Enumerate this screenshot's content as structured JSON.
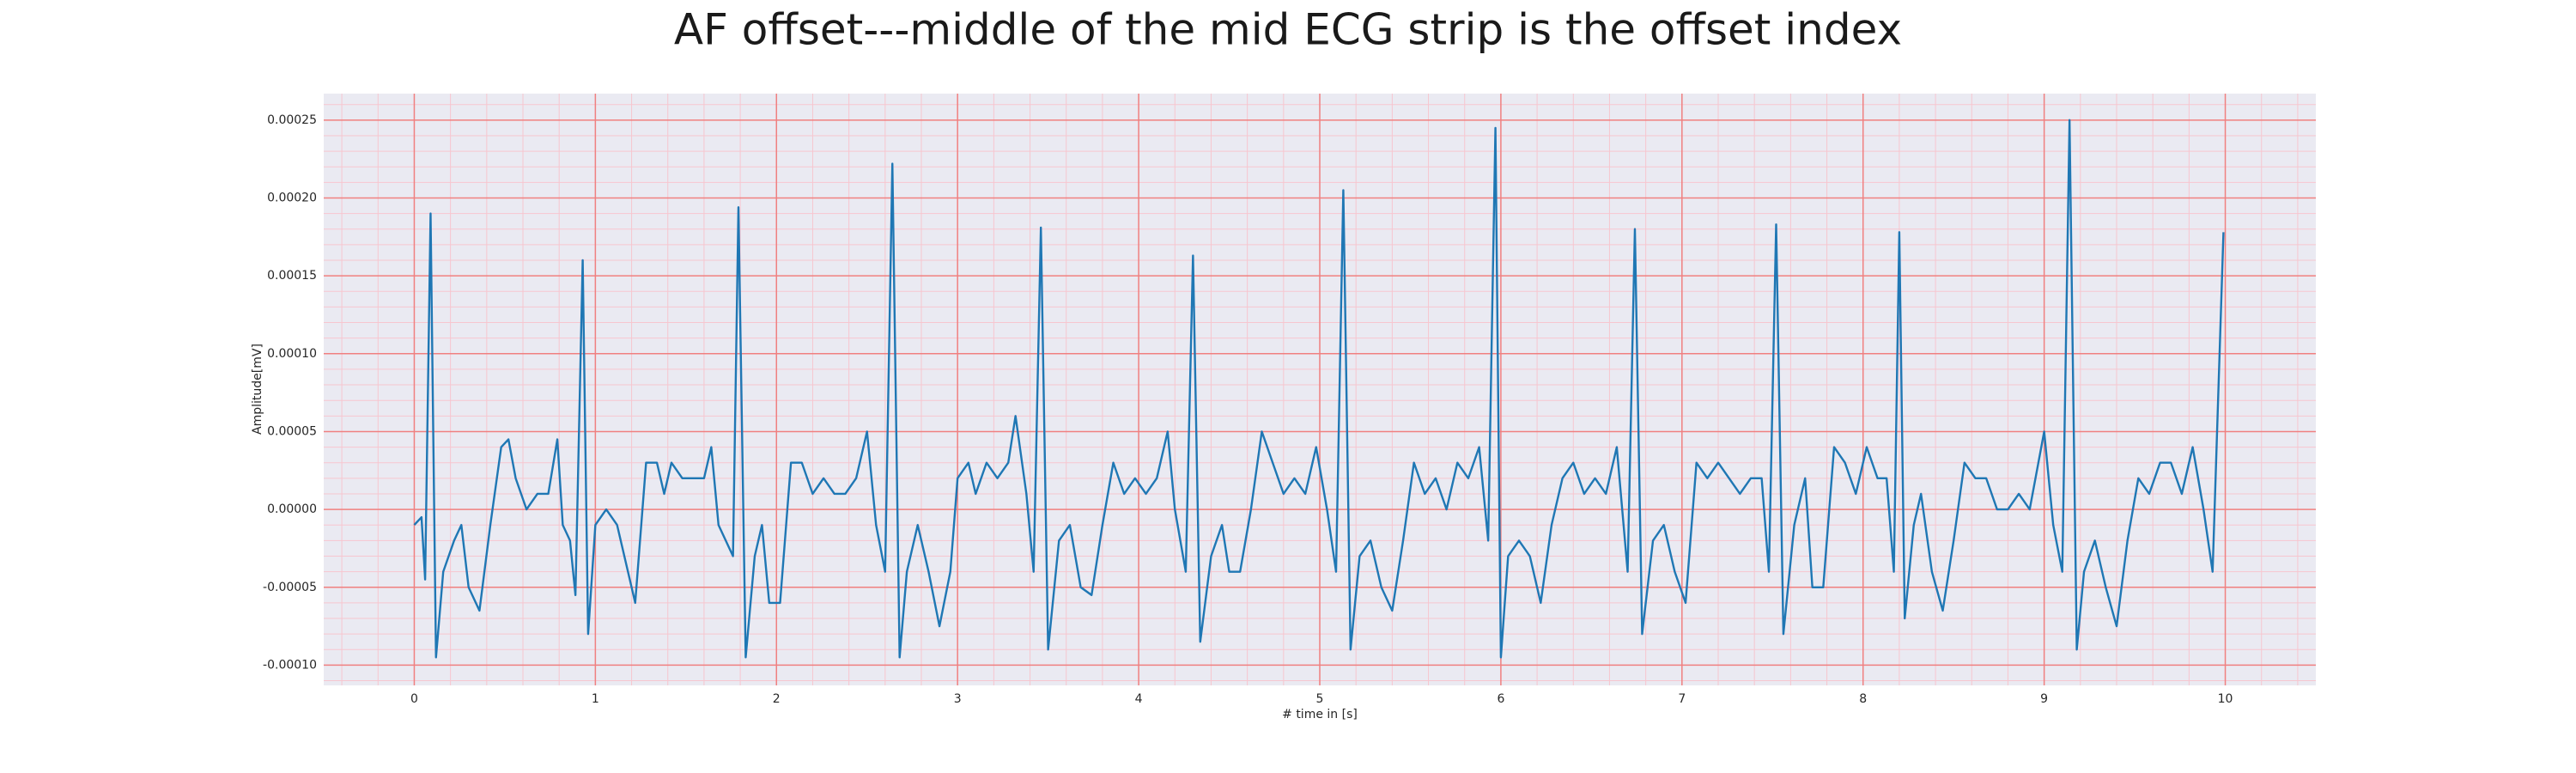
{
  "chart_data": {
    "type": "line",
    "title": "AF offset---middle of the mid ECG strip is the offset index",
    "x_label": "# time in [s]",
    "y_label": "Amplitude[mV]",
    "color": "#1f77b4",
    "background": "#eaeaf2",
    "grid": true,
    "grid_color": "#f08080",
    "minor_grid": true,
    "minor_grid_color": "#f7c6cf",
    "xlim": [
      -0.5,
      10.5
    ],
    "ylim": [
      -0.000113,
      0.000267
    ],
    "xticks": [
      0,
      1,
      2,
      3,
      4,
      5,
      6,
      7,
      8,
      9,
      10
    ],
    "yticks": [
      {
        "value": -0.0001,
        "label": "-0.00010"
      },
      -5e-05,
      {
        "value": 0,
        "label": "0.00000"
      },
      5e-05,
      {
        "value": 0.0001,
        "label": "0.00010"
      },
      0.00015,
      {
        "value": 0.0002,
        "label": "0.00020"
      },
      0.00025
    ],
    "x": [
      0.0,
      0.04,
      0.06,
      0.09,
      0.12,
      0.16,
      0.22,
      0.26,
      0.3,
      0.36,
      0.42,
      0.48,
      0.52,
      0.56,
      0.62,
      0.68,
      0.74,
      0.79,
      0.82,
      0.86,
      0.89,
      0.93,
      0.96,
      1.0,
      1.06,
      1.12,
      1.18,
      1.22,
      1.28,
      1.34,
      1.38,
      1.42,
      1.48,
      1.54,
      1.6,
      1.64,
      1.68,
      1.72,
      1.76,
      1.79,
      1.83,
      1.88,
      1.92,
      1.96,
      2.02,
      2.08,
      2.14,
      2.2,
      2.26,
      2.32,
      2.38,
      2.44,
      2.5,
      2.55,
      2.6,
      2.64,
      2.68,
      2.72,
      2.78,
      2.84,
      2.9,
      2.96,
      3.0,
      3.06,
      3.1,
      3.16,
      3.22,
      3.28,
      3.32,
      3.38,
      3.42,
      3.46,
      3.5,
      3.56,
      3.62,
      3.68,
      3.74,
      3.8,
      3.86,
      3.92,
      3.98,
      4.04,
      4.1,
      4.16,
      4.2,
      4.26,
      4.3,
      4.34,
      4.4,
      4.46,
      4.5,
      4.56,
      4.62,
      4.68,
      4.74,
      4.8,
      4.86,
      4.92,
      4.98,
      5.04,
      5.09,
      5.13,
      5.17,
      5.22,
      5.28,
      5.34,
      5.4,
      5.46,
      5.52,
      5.58,
      5.64,
      5.7,
      5.76,
      5.82,
      5.88,
      5.93,
      5.97,
      6.0,
      6.04,
      6.1,
      6.16,
      6.22,
      6.28,
      6.34,
      6.4,
      6.46,
      6.52,
      6.58,
      6.64,
      6.7,
      6.74,
      6.78,
      6.84,
      6.9,
      6.96,
      7.02,
      7.08,
      7.14,
      7.2,
      7.26,
      7.32,
      7.38,
      7.44,
      7.48,
      7.52,
      7.56,
      7.62,
      7.68,
      7.72,
      7.78,
      7.84,
      7.9,
      7.96,
      8.02,
      8.08,
      8.13,
      8.17,
      8.2,
      8.23,
      8.28,
      8.32,
      8.38,
      8.44,
      8.5,
      8.56,
      8.62,
      8.68,
      8.74,
      8.8,
      8.86,
      8.92,
      9.0,
      9.05,
      9.1,
      9.14,
      9.18,
      9.22,
      9.28,
      9.34,
      9.4,
      9.46,
      9.52,
      9.58,
      9.64,
      9.7,
      9.76,
      9.82,
      9.88,
      9.93,
      9.99
    ],
    "values": [
      -1e-05,
      -5e-06,
      -4.5e-05,
      0.00019,
      -9.5e-05,
      -4e-05,
      -2e-05,
      -1e-05,
      -5e-05,
      -6.5e-05,
      -1e-05,
      4e-05,
      4.5e-05,
      2e-05,
      0.0,
      1e-05,
      1e-05,
      4.5e-05,
      -1e-05,
      -2e-05,
      -5.5e-05,
      0.00016,
      -8e-05,
      -1e-05,
      0.0,
      -1e-05,
      -4e-05,
      -6e-05,
      3e-05,
      3e-05,
      1e-05,
      3e-05,
      2e-05,
      2e-05,
      2e-05,
      4e-05,
      -1e-05,
      -2e-05,
      -3e-05,
      0.000194,
      -9.5e-05,
      -3e-05,
      -1e-05,
      -6e-05,
      -6e-05,
      3e-05,
      3e-05,
      1e-05,
      2e-05,
      1e-05,
      1e-05,
      2e-05,
      5e-05,
      -1e-05,
      -4e-05,
      0.000222,
      -9.5e-05,
      -4e-05,
      -1e-05,
      -4e-05,
      -7.5e-05,
      -4e-05,
      2e-05,
      3e-05,
      1e-05,
      3e-05,
      2e-05,
      3e-05,
      6e-05,
      1e-05,
      -4e-05,
      0.000181,
      -9e-05,
      -2e-05,
      -1e-05,
      -5e-05,
      -5.5e-05,
      -1e-05,
      3e-05,
      1e-05,
      2e-05,
      1e-05,
      2e-05,
      5e-05,
      0.0,
      -4e-05,
      0.000163,
      -8.5e-05,
      -3e-05,
      -1e-05,
      -4e-05,
      -4e-05,
      0.0,
      5e-05,
      3e-05,
      1e-05,
      2e-05,
      1e-05,
      4e-05,
      0.0,
      -4e-05,
      0.000205,
      -9e-05,
      -3e-05,
      -2e-05,
      -5e-05,
      -6.5e-05,
      -2e-05,
      3e-05,
      1e-05,
      2e-05,
      0.0,
      3e-05,
      2e-05,
      4e-05,
      -2e-05,
      0.000245,
      -9.5e-05,
      -3e-05,
      -2e-05,
      -3e-05,
      -6e-05,
      -1e-05,
      2e-05,
      3e-05,
      1e-05,
      2e-05,
      1e-05,
      4e-05,
      -4e-05,
      0.00018,
      -8e-05,
      -2e-05,
      -1e-05,
      -4e-05,
      -6e-05,
      3e-05,
      2e-05,
      3e-05,
      2e-05,
      1e-05,
      2e-05,
      2e-05,
      -4e-05,
      0.000183,
      -8e-05,
      -1e-05,
      2e-05,
      -5e-05,
      -5e-05,
      4e-05,
      3e-05,
      1e-05,
      4e-05,
      2e-05,
      2e-05,
      -4e-05,
      0.000178,
      -7e-05,
      -1e-05,
      1e-05,
      -4e-05,
      -6.5e-05,
      -2e-05,
      3e-05,
      2e-05,
      2e-05,
      0.0,
      0.0,
      1e-05,
      0.0,
      5e-05,
      -1e-05,
      -4e-05,
      0.00025,
      -9e-05,
      -4e-05,
      -2e-05,
      -5e-05,
      -7.5e-05,
      -2e-05,
      2e-05,
      1e-05,
      3e-05,
      3e-05,
      1e-05,
      4e-05,
      0.0,
      -4e-05,
      0.000178
    ]
  }
}
